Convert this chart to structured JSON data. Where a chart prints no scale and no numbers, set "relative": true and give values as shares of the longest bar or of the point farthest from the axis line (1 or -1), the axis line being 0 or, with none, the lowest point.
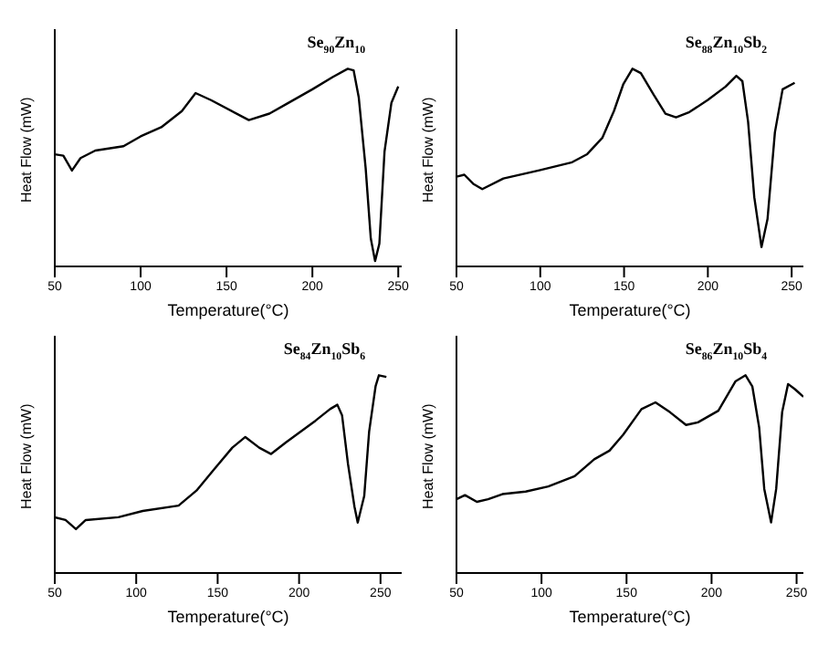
{
  "chart_data": [
    {
      "type": "line",
      "xlabel": "Temperature(°C)",
      "ylabel": "Heat Flow (mW)",
      "relative": true,
      "tick_labels": "x",
      "xlim": [
        50,
        252
      ],
      "xticks": [
        50,
        100,
        150,
        200,
        250
      ],
      "series": [
        {
          "name": "Se$_{90}$Zn$_{10}$",
          "color": "#000000",
          "x": [
            50,
            55,
            60,
            65,
            73.6,
            90,
            100,
            112,
            124,
            132,
            141,
            163,
            175,
            185,
            200,
            212,
            220.6,
            224,
            227,
            231,
            234,
            236.5,
            239,
            242,
            246,
            250
          ],
          "values": [
            0.567,
            0.56,
            0.485,
            0.548,
            0.586,
            0.608,
            0.658,
            0.704,
            0.786,
            0.877,
            0.841,
            0.74,
            0.773,
            0.822,
            0.896,
            0.959,
            1.0,
            0.992,
            0.855,
            0.499,
            0.142,
            0.027,
            0.115,
            0.581,
            0.827,
            0.91
          ]
        }
      ]
    },
    {
      "type": "line",
      "xlabel": "Temperature(°C)",
      "ylabel": "Heat Flow (mW)",
      "relative": true,
      "tick_labels": "x",
      "xlim": [
        50,
        257
      ],
      "xticks": [
        50,
        100,
        150,
        200,
        250
      ],
      "series": [
        {
          "name": "Se$_{88}$Zn$_{10}$Sb$_{2}$",
          "color": "#000000",
          "x": [
            50,
            54.7,
            60,
            65.4,
            78,
            99.5,
            119,
            128,
            137,
            144,
            149.6,
            155,
            160,
            167.6,
            174.7,
            181,
            189,
            200,
            210.6,
            217,
            220.6,
            224,
            227.7,
            232,
            235.6,
            240,
            244.6,
            251.8
          ],
          "values": [
            0.454,
            0.464,
            0.418,
            0.391,
            0.445,
            0.486,
            0.527,
            0.568,
            0.65,
            0.787,
            0.923,
            1.0,
            0.978,
            0.869,
            0.773,
            0.754,
            0.781,
            0.842,
            0.91,
            0.964,
            0.937,
            0.732,
            0.35,
            0.098,
            0.24,
            0.678,
            0.896,
            0.929
          ]
        }
      ]
    },
    {
      "type": "line",
      "xlabel": "Temperature(°C)",
      "ylabel": "Heat Flow (mW)",
      "relative": true,
      "tick_labels": "x",
      "xlim": [
        50,
        263
      ],
      "xticks": [
        50,
        100,
        150,
        200,
        250
      ],
      "series": [
        {
          "name": "Se$_{84}$Zn$_{10}$Sb$_{6}$",
          "color": "#000000",
          "x": [
            50,
            56.6,
            63,
            69,
            89,
            104,
            126,
            137,
            148,
            159,
            167,
            175.5,
            182.8,
            192,
            210,
            219,
            223.5,
            226.4,
            230,
            234,
            236,
            240,
            243,
            247,
            249,
            253.6
          ],
          "values": [
            0.282,
            0.268,
            0.222,
            0.268,
            0.282,
            0.314,
            0.341,
            0.417,
            0.526,
            0.634,
            0.688,
            0.634,
            0.602,
            0.661,
            0.77,
            0.829,
            0.851,
            0.797,
            0.553,
            0.336,
            0.255,
            0.39,
            0.715,
            0.946,
            1.0,
            0.992
          ]
        }
      ]
    },
    {
      "type": "line",
      "xlabel": "Temperature(°C)",
      "ylabel": "Heat Flow (mW)",
      "relative": true,
      "tick_labels": "x",
      "xlim": [
        50,
        254
      ],
      "xticks": [
        50,
        100,
        150,
        200,
        250
      ],
      "series": [
        {
          "name": "Se$_{86}$Zn$_{10}$Sb$_{4}$",
          "color": "#000000",
          "x": [
            50,
            55,
            62,
            68.6,
            77,
            90.7,
            104,
            119.5,
            131,
            140,
            148,
            158.8,
            167,
            175.6,
            185,
            192,
            204,
            214,
            220,
            224,
            228,
            231,
            235,
            238,
            241.5,
            245,
            249,
            254
          ],
          "values": [
            0.373,
            0.394,
            0.36,
            0.373,
            0.399,
            0.412,
            0.438,
            0.49,
            0.575,
            0.619,
            0.699,
            0.829,
            0.863,
            0.813,
            0.749,
            0.762,
            0.821,
            0.969,
            1.0,
            0.943,
            0.736,
            0.425,
            0.256,
            0.425,
            0.813,
            0.956,
            0.93,
            0.891
          ]
        }
      ]
    }
  ]
}
